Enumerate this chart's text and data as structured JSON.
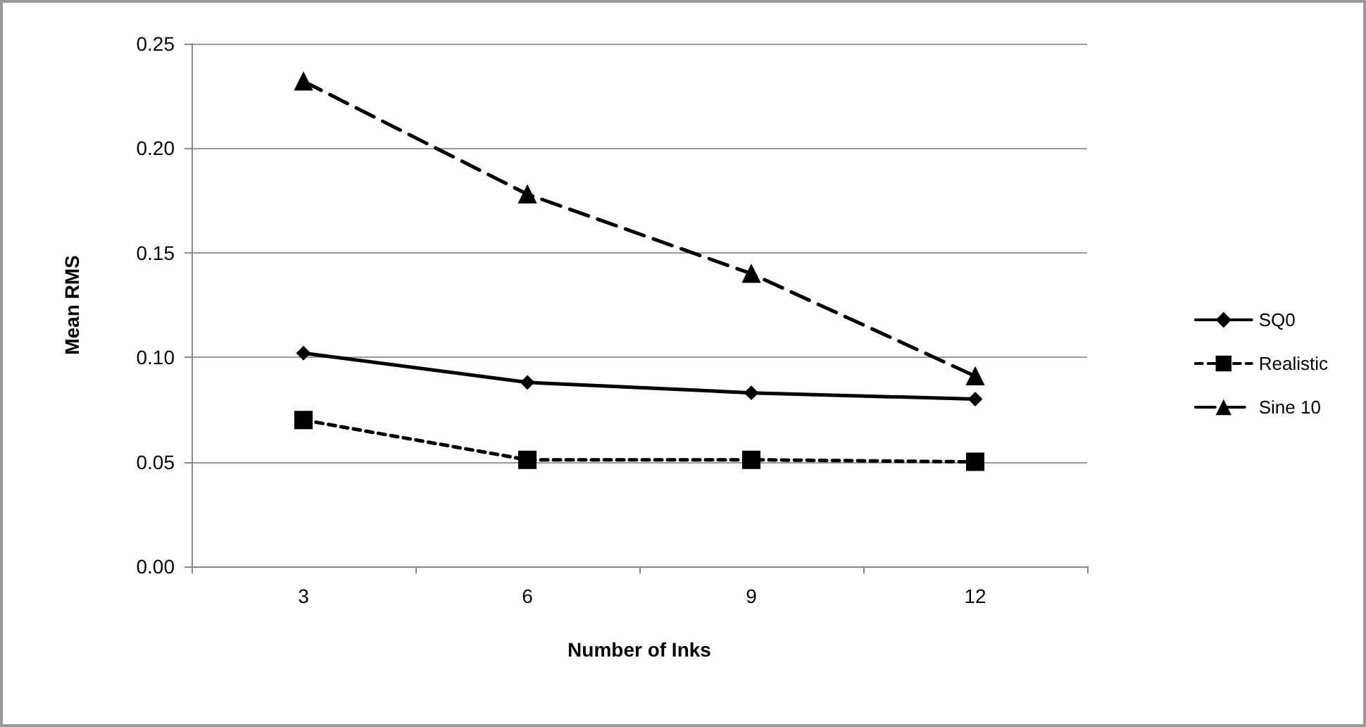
{
  "chart_data": {
    "type": "line",
    "xlabel": "Number of Inks",
    "ylabel": "Mean RMS",
    "categories": [
      "3",
      "6",
      "9",
      "12"
    ],
    "series": [
      {
        "name": "SQ0",
        "color": "#000000",
        "values": [
          0.102,
          0.088,
          0.083,
          0.08
        ],
        "marker": "diamond",
        "line_style": "solid"
      },
      {
        "name": "Realistic",
        "color": "#000000",
        "values": [
          0.07,
          0.051,
          0.051,
          0.05
        ],
        "marker": "square",
        "line_style": "dotted"
      },
      {
        "name": "Sine 10",
        "color": "#000000",
        "values": [
          0.232,
          0.178,
          0.14,
          0.091
        ],
        "marker": "triangle",
        "line_style": "dashed"
      }
    ],
    "ylim": [
      0,
      0.25
    ],
    "yticks": [
      {
        "value": 0,
        "label": "0.00"
      },
      {
        "value": 0.05,
        "label": "0.05"
      },
      {
        "value": 0.1,
        "label": "0.10"
      },
      {
        "value": 0.15,
        "label": "0.15"
      },
      {
        "value": 0.2,
        "label": "0.20"
      },
      {
        "value": 0.25,
        "label": "0.25"
      }
    ],
    "grid": "y",
    "legend": "right"
  }
}
